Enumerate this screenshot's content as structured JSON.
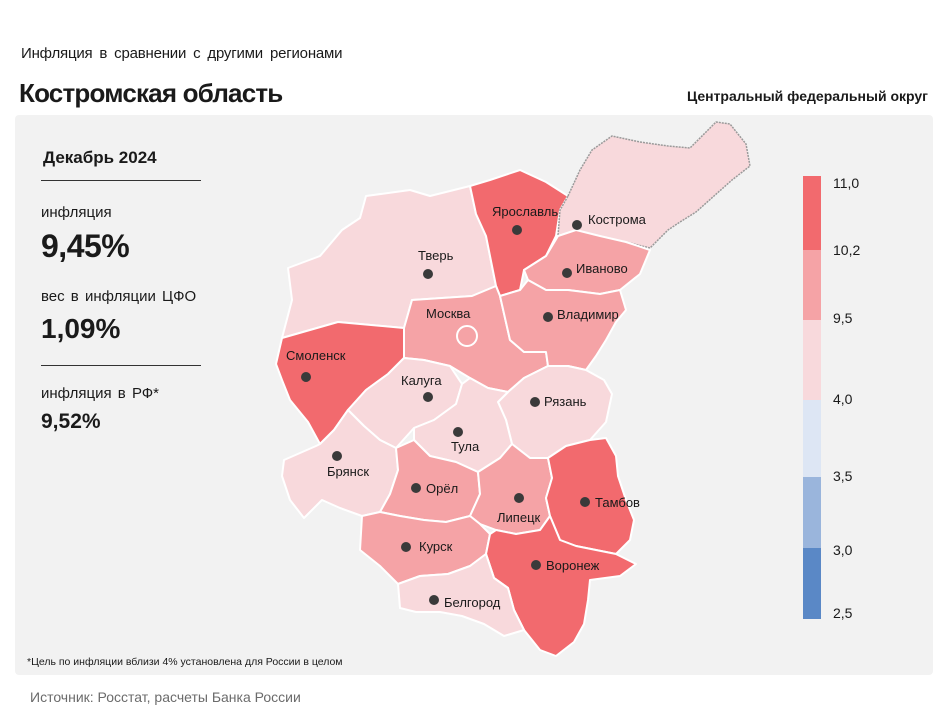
{
  "header": {
    "subtitle": "Инфляция  в сравнении  с другими  регионами",
    "title": "Костромская область",
    "district": "Центральный федеральный округ"
  },
  "info": {
    "period": "Декабрь 2024",
    "inflation_label": "инфляция",
    "inflation_value": "9,45%",
    "weight_label": "вес в инфляции  ЦФО",
    "weight_value": "1,09%",
    "rf_label": "инфляция  в РФ*",
    "rf_value": "9,52%"
  },
  "footnote": "*Цель по инфляции вблизи 4% установлена для России в целом",
  "source": "Источник: Росстат, расчеты Банка России",
  "regions": {
    "kostroma": "Кострома",
    "yaroslavl": "Ярославль",
    "tver": "Тверь",
    "ivanovo": "Иваново",
    "moscow": "Москва",
    "vladimir": "Владимир",
    "smolensk": "Смоленск",
    "kaluga": "Калуга",
    "ryazan": "Рязань",
    "tula": "Тула",
    "bryansk": "Брянск",
    "orel": "Орёл",
    "lipetsk": "Липецк",
    "tambov": "Тамбов",
    "kursk": "Курск",
    "voronezh": "Воронеж",
    "belgorod": "Белгород"
  },
  "colors": {
    "bin_10_2_11_0": "#f26a6e",
    "bin_9_5_10_2": "#f5a3a6",
    "bin_4_0_9_5": "#f8d9dc",
    "bin_3_5_4_0": "#dde6f4",
    "bin_3_0_3_5": "#9ab5dc",
    "bin_2_5_3_0": "#5a88c6"
  },
  "legend": {
    "ticks": [
      "11,0",
      "10,2",
      "9,5",
      "4,0",
      "3,5",
      "3,0",
      "2,5"
    ]
  }
}
